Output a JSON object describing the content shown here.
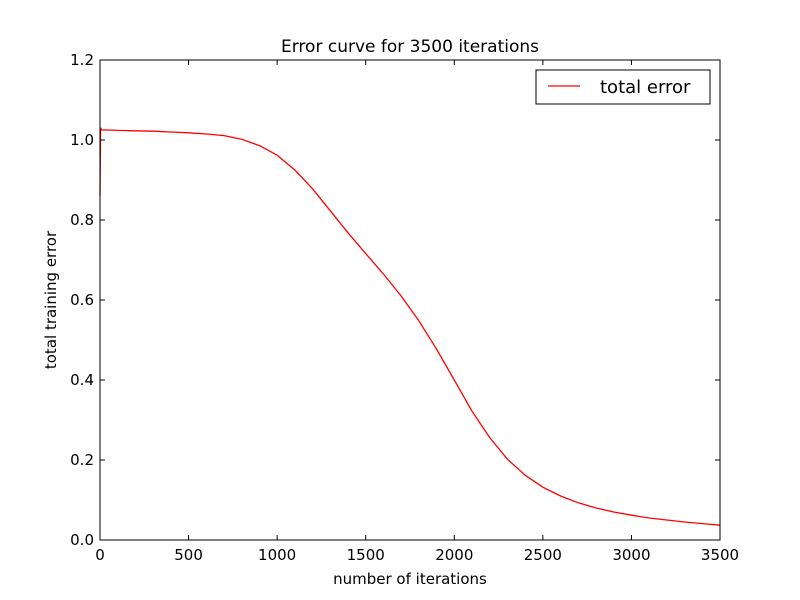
{
  "chart_data": {
    "type": "line",
    "title": "Error curve for 3500 iterations",
    "xlabel": "number of iterations",
    "ylabel": "total training error",
    "xlim": [
      0,
      3500
    ],
    "ylim": [
      0,
      1.2
    ],
    "xticks": [
      0,
      500,
      1000,
      1500,
      2000,
      2500,
      3000,
      3500
    ],
    "yticks": [
      0.0,
      0.2,
      0.4,
      0.6,
      0.8,
      1.0,
      1.2
    ],
    "xtick_labels": [
      "0",
      "500",
      "1000",
      "1500",
      "2000",
      "2500",
      "3000",
      "3500"
    ],
    "ytick_labels": [
      "0.0",
      "0.2",
      "0.4",
      "0.6",
      "0.8",
      "1.0",
      "1.2"
    ],
    "grid": false,
    "legend_position": "top-right",
    "series": [
      {
        "name": "total error",
        "color": "#ff0000",
        "x": [
          0,
          3,
          10,
          20,
          50,
          100,
          200,
          300,
          400,
          500,
          600,
          700,
          800,
          900,
          1000,
          1100,
          1200,
          1300,
          1400,
          1500,
          1600,
          1700,
          1800,
          1900,
          2000,
          2100,
          2200,
          2300,
          2400,
          2500,
          2600,
          2700,
          2800,
          2900,
          3000,
          3100,
          3200,
          3300,
          3400,
          3500
        ],
        "y": [
          0.86,
          1.03,
          1.025,
          1.025,
          1.025,
          1.024,
          1.023,
          1.022,
          1.02,
          1.018,
          1.015,
          1.011,
          1.002,
          0.986,
          0.962,
          0.925,
          0.878,
          0.823,
          0.768,
          0.716,
          0.665,
          0.61,
          0.548,
          0.477,
          0.4,
          0.322,
          0.256,
          0.202,
          0.162,
          0.132,
          0.11,
          0.093,
          0.08,
          0.07,
          0.062,
          0.055,
          0.05,
          0.045,
          0.041,
          0.037
        ]
      }
    ]
  }
}
